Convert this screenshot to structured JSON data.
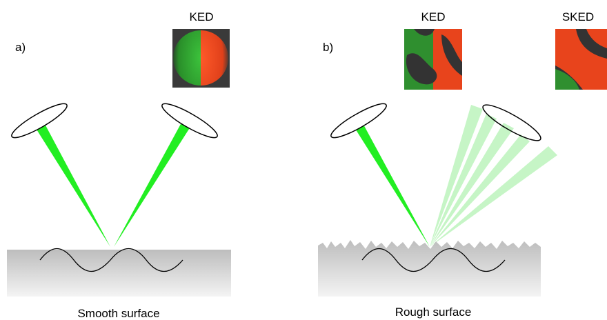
{
  "panels": [
    {
      "label": "a)",
      "images": [
        {
          "caption": "KED"
        }
      ],
      "surface": "Smooth surface"
    },
    {
      "label": "b)",
      "images": [
        {
          "caption": "KED"
        },
        {
          "caption": "SKED"
        }
      ],
      "surface": "Rough surface"
    }
  ]
}
